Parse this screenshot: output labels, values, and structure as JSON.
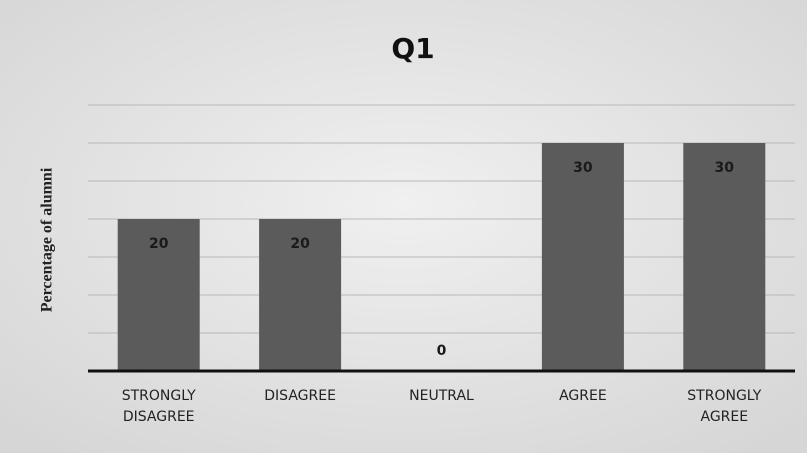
{
  "chart_data": {
    "type": "bar",
    "title": "Q1",
    "ylabel": "Percentage of alumni",
    "categories": [
      "STRONGLY DISAGREE",
      "DISAGREE",
      "NEUTRAL",
      "AGREE",
      "STRONGLY AGREE"
    ],
    "values": [
      20,
      20,
      0,
      30,
      30
    ],
    "color": "#5b5b5b",
    "ylim": [
      0,
      35
    ],
    "yticks": [
      0,
      5,
      10,
      15,
      20,
      25,
      30,
      35
    ],
    "grid": true
  }
}
